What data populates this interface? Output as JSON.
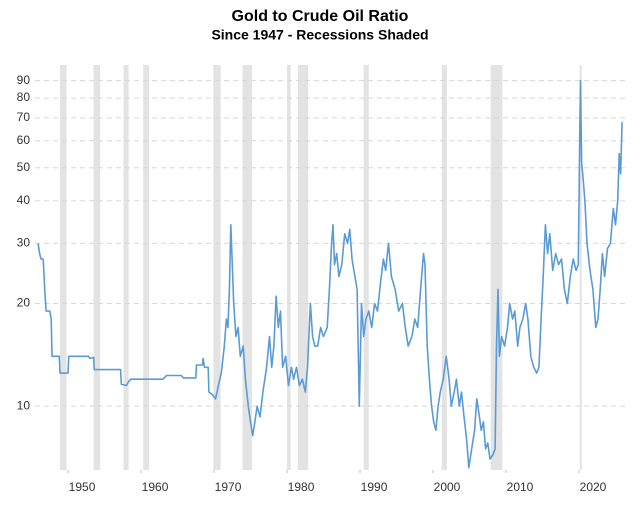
{
  "chart_data": {
    "type": "line",
    "title": "Gold to Crude Oil Ratio",
    "subtitle": "Since 1947 - Recessions Shaded",
    "color": "#5b9bd5",
    "log_scale": true,
    "grid": true,
    "xlim": [
      1945.2,
      2026.3
    ],
    "ylim": [
      6.5,
      100
    ],
    "xticks": [
      1950,
      1960,
      1970,
      1980,
      1990,
      2000,
      2010,
      2020
    ],
    "yticks": [
      10,
      20,
      30,
      40,
      50,
      60,
      70,
      80,
      90
    ],
    "recessions": [
      [
        1948.9,
        1949.8
      ],
      [
        1953.5,
        1954.4
      ],
      [
        1957.6,
        1958.3
      ],
      [
        1960.3,
        1961.1
      ],
      [
        1969.9,
        1970.9
      ],
      [
        1973.9,
        1975.2
      ],
      [
        1980.0,
        1980.5
      ],
      [
        1981.5,
        1982.9
      ],
      [
        1990.5,
        1991.2
      ],
      [
        2001.2,
        2001.9
      ],
      [
        2007.9,
        2009.5
      ],
      [
        2020.1,
        2020.3
      ]
    ],
    "x": [
      1945.9,
      1946.1,
      1946.3,
      1946.6,
      1946.8,
      1947,
      1947.5,
      1947.7,
      1947.8,
      1948.8,
      1948.9,
      1950,
      1950.1,
      1952.8,
      1953.0,
      1953.5,
      1953.6,
      1957.2,
      1957.3,
      1958.0,
      1958.3,
      1958.6,
      1963,
      1963.5,
      1965.5,
      1965.8,
      1967.5,
      1967.6,
      1968.4,
      1968.5,
      1968.7,
      1969.2,
      1969.3,
      1969.8,
      1970.2,
      1970.6,
      1971,
      1971.4,
      1971.7,
      1971.9,
      1972.1,
      1972.3,
      1972.5,
      1972.7,
      1973,
      1973.3,
      1973.6,
      1974,
      1974.3,
      1974.7,
      1975,
      1975.3,
      1975.6,
      1975.9,
      1976.3,
      1976.7,
      1977.2,
      1977.6,
      1977.9,
      1978.2,
      1978.5,
      1978.8,
      1979.1,
      1979.4,
      1979.8,
      1980.2,
      1980.6,
      1980.9,
      1981.3,
      1981.7,
      1982.1,
      1982.5,
      1982.8,
      1983.2,
      1983.5,
      1983.8,
      1984.2,
      1984.6,
      1985,
      1985.5,
      1985.8,
      1986.1,
      1986.3,
      1986.5,
      1986.8,
      1987.1,
      1987.5,
      1987.9,
      1988.3,
      1988.6,
      1988.9,
      1989.3,
      1989.6,
      1989.9,
      1990.2,
      1990.5,
      1990.8,
      1991.2,
      1991.6,
      1992,
      1992.4,
      1992.8,
      1993.2,
      1993.5,
      1993.9,
      1994.3,
      1994.8,
      1995.3,
      1995.8,
      1996.2,
      1996.6,
      1997.1,
      1997.5,
      1997.9,
      1998.3,
      1998.7,
      1998.9,
      1999.2,
      1999.5,
      1999.8,
      2000.1,
      2000.4,
      2000.7,
      2001,
      2001.4,
      2001.8,
      2002.2,
      2002.5,
      2002.9,
      2003.2,
      2003.6,
      2003.9,
      2004.2,
      2004.6,
      2004.9,
      2005.3,
      2005.7,
      2006,
      2006.3,
      2006.6,
      2006.9,
      2007.2,
      2007.5,
      2007.8,
      2008.2,
      2008.5,
      2008.7,
      2008.9,
      2009.1,
      2009.4,
      2009.8,
      2010.2,
      2010.5,
      2010.9,
      2011.2,
      2011.6,
      2011.9,
      2012.3,
      2012.7,
      2013,
      2013.4,
      2013.8,
      2014.2,
      2014.5,
      2014.8,
      2015.1,
      2015.4,
      2015.7,
      2016,
      2016.4,
      2016.8,
      2017.2,
      2017.6,
      2018,
      2018.4,
      2018.8,
      2019.2,
      2019.6,
      2019.9,
      2020.1,
      2020.2,
      2020.35,
      2020.5,
      2020.8,
      2021.1,
      2021.5,
      2021.9,
      2022.3,
      2022.6,
      2022.9,
      2023.2,
      2023.5,
      2023.9,
      2024.3,
      2024.7,
      2025,
      2025.3,
      2025.5,
      2025.7,
      2025.9
    ],
    "values": [
      30,
      28,
      27,
      27,
      22,
      19,
      19,
      18,
      14,
      14,
      12.5,
      12.5,
      14,
      14,
      13.8,
      13.9,
      12.8,
      12.8,
      11.6,
      11.5,
      11.8,
      12,
      12,
      12.3,
      12.3,
      12.1,
      12.1,
      13.2,
      13.2,
      13.8,
      13,
      13,
      11,
      10.8,
      10.5,
      11.5,
      12.5,
      15,
      18,
      17,
      22,
      34,
      26,
      20,
      16,
      17,
      14,
      15,
      12,
      10,
      9,
      8.2,
      9,
      10,
      9.3,
      11,
      13,
      16,
      13,
      15,
      21,
      17,
      19,
      13,
      14,
      11.5,
      13,
      12,
      13,
      11.5,
      12,
      11,
      13,
      20,
      16,
      15,
      15,
      17,
      16,
      17,
      22,
      30,
      34,
      26,
      28,
      24,
      26,
      32,
      30,
      33,
      27,
      24,
      22,
      10,
      20,
      16,
      18,
      19,
      17,
      20,
      19,
      23,
      27,
      25,
      30,
      24,
      22,
      19,
      20,
      17,
      15,
      16,
      18,
      17,
      22,
      28,
      26,
      15,
      12,
      10,
      9,
      8.5,
      10,
      11,
      12,
      14,
      12,
      10,
      11,
      12,
      10,
      11,
      9.5,
      8,
      6.6,
      7.5,
      8.5,
      10.5,
      9.5,
      8.5,
      9,
      7.5,
      7.8,
      7,
      7.2,
      7.5,
      15,
      22,
      14,
      16,
      15,
      17,
      20,
      18,
      19,
      15,
      17,
      18,
      20,
      18,
      14,
      13,
      12.5,
      13,
      18,
      24,
      34,
      28,
      32,
      25,
      28,
      26,
      27,
      22,
      20,
      24,
      27,
      25,
      26,
      60,
      90,
      52,
      48,
      40,
      30,
      25,
      22,
      17,
      18,
      22,
      28,
      24,
      29,
      30,
      38,
      34,
      40,
      55,
      48,
      68
    ]
  }
}
